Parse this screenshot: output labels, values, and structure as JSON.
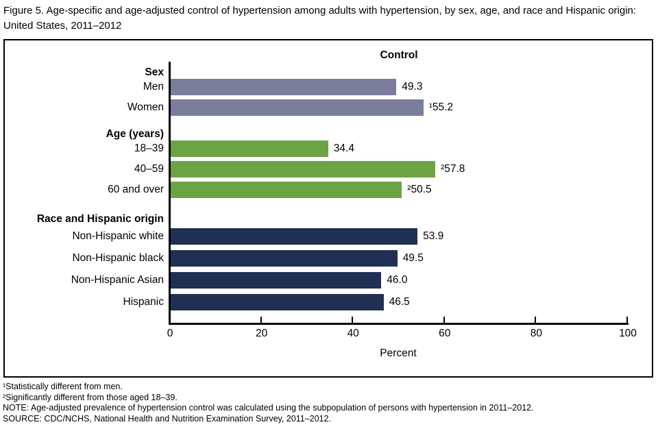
{
  "figure": {
    "title": "Figure 5. Age-specific and age-adjusted control of hypertension among adults with hypertension, by sex, age, and race and Hispanic origin: United States, 2011–2012",
    "footnotes": [
      "¹Statistically different from men.",
      "²Significantly different from those aged 18–39.",
      "NOTE: Age-adjusted prevalence of hypertension control was calculated using the subpopulation of persons with hypertension in 2011–2012.",
      "SOURCE: CDC/NCHS, National Health and Nutrition Examination Survey, 2011–2012."
    ]
  },
  "chart_data": {
    "type": "bar",
    "orientation": "horizontal",
    "title": "Control",
    "xlabel": "Percent",
    "xlim": [
      0,
      100
    ],
    "xticks": [
      0,
      20,
      40,
      60,
      80,
      100
    ],
    "grid": false,
    "legend": false,
    "groups": [
      {
        "label": "Sex",
        "color": "#7a7d9c",
        "bars": [
          {
            "label": "Men",
            "value": 49.3,
            "display": "49.3"
          },
          {
            "label": "Women",
            "value": 55.2,
            "display": "¹55.2"
          }
        ]
      },
      {
        "label": "Age (years)",
        "color": "#6ca344",
        "bars": [
          {
            "label": "18–39",
            "value": 34.4,
            "display": "34.4"
          },
          {
            "label": "40–59",
            "value": 57.8,
            "display": "²57.8"
          },
          {
            "label": "60 and over",
            "value": 50.5,
            "display": "²50.5"
          }
        ]
      },
      {
        "label": "Race and Hispanic origin",
        "color": "#1f3054",
        "bars": [
          {
            "label": "Non-Hispanic white",
            "value": 53.9,
            "display": "53.9"
          },
          {
            "label": "Non-Hispanic black",
            "value": 49.5,
            "display": "49.5"
          },
          {
            "label": "Non-Hispanic Asian",
            "value": 46.0,
            "display": "46.0"
          },
          {
            "label": "Hispanic",
            "value": 46.5,
            "display": "46.5"
          }
        ]
      }
    ]
  }
}
